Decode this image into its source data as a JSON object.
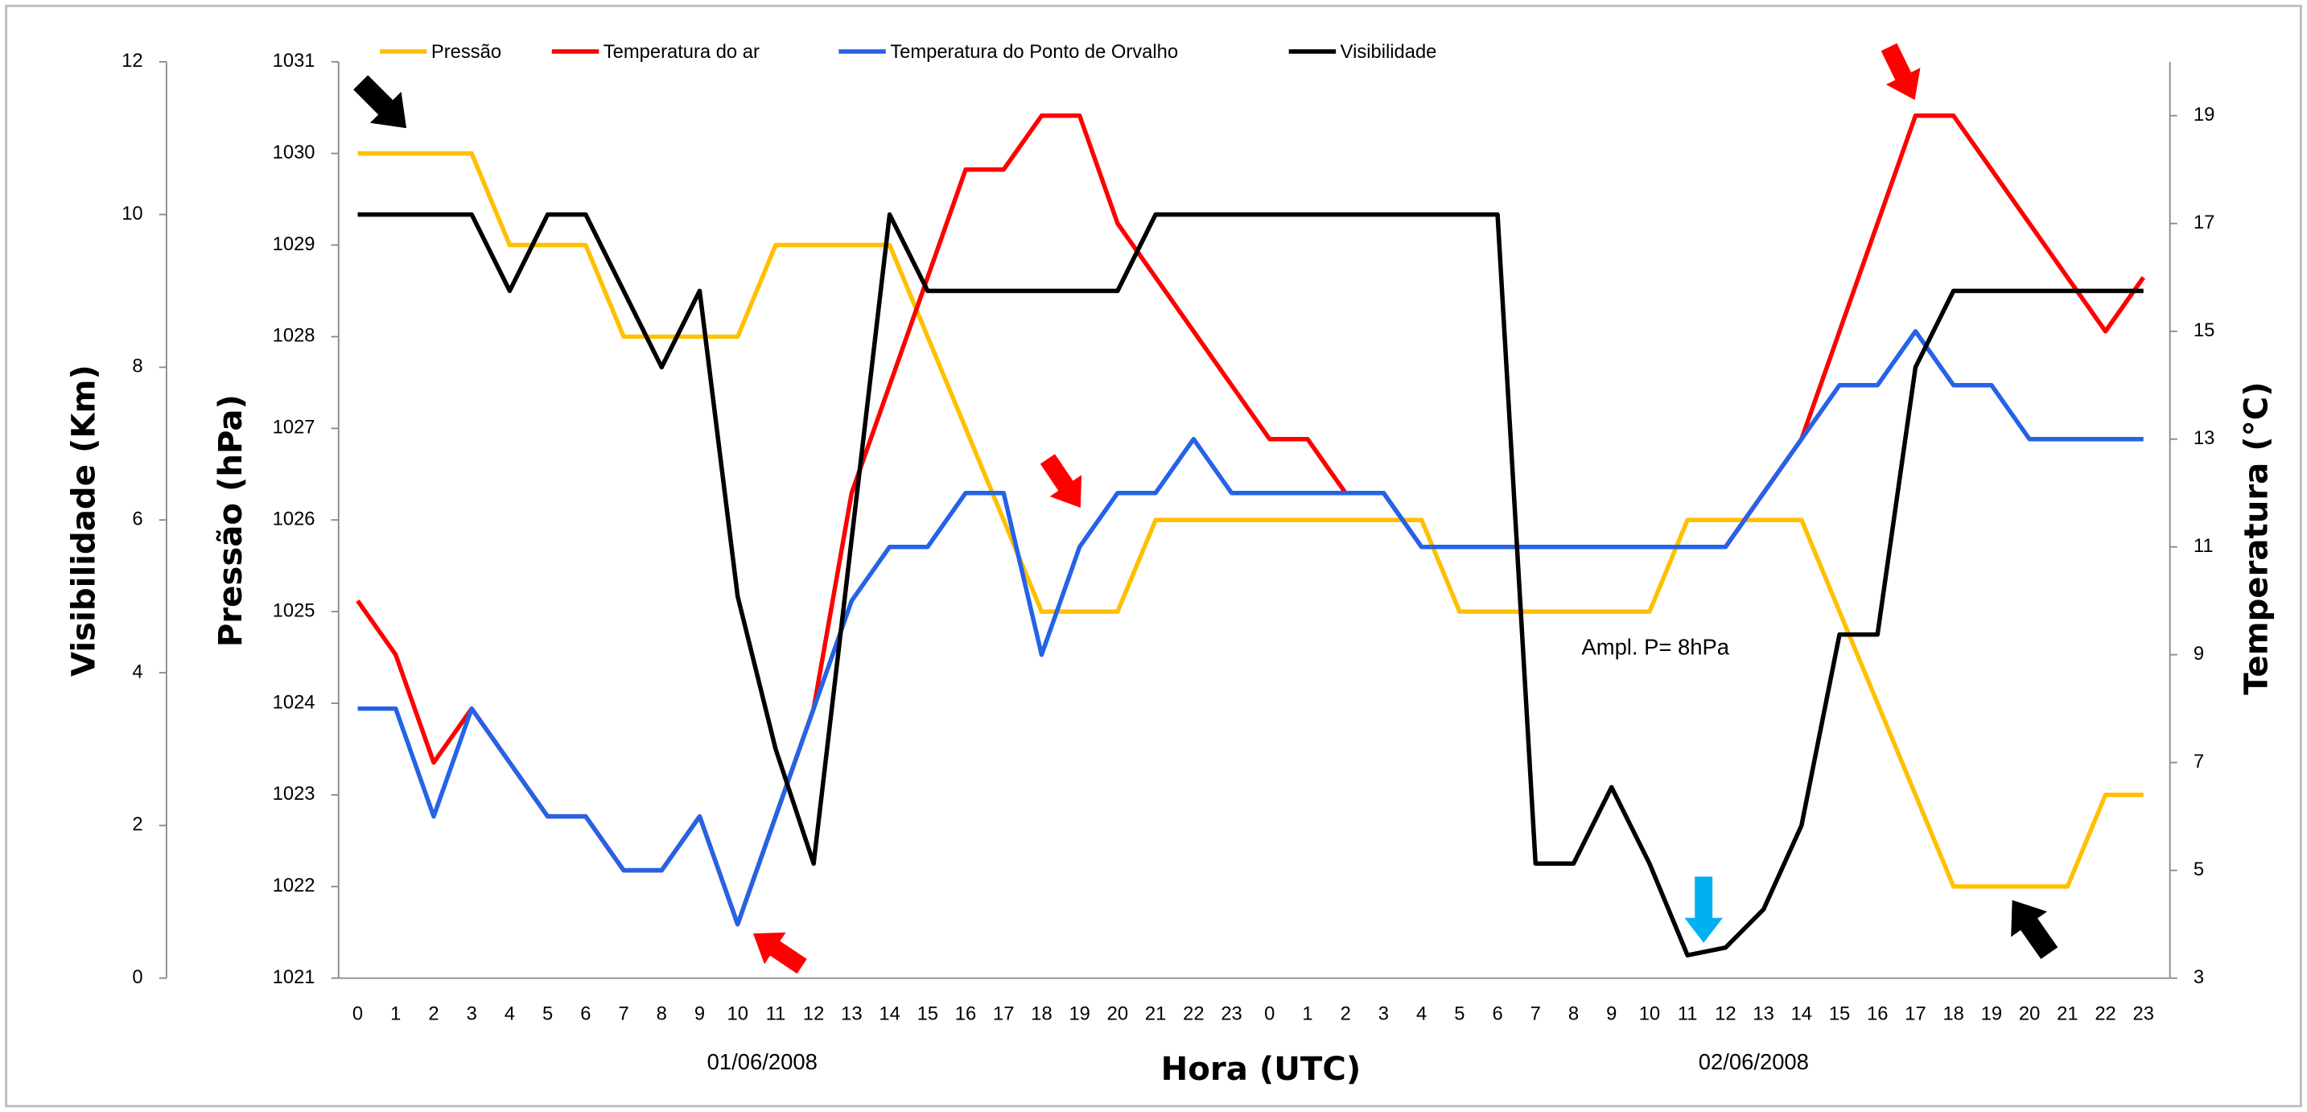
{
  "chart_data": {
    "type": "line",
    "categories": [
      "0",
      "1",
      "2",
      "3",
      "4",
      "5",
      "6",
      "7",
      "8",
      "9",
      "10",
      "11",
      "12",
      "13",
      "14",
      "15",
      "16",
      "17",
      "18",
      "19",
      "20",
      "21",
      "22",
      "23",
      "0",
      "1",
      "2",
      "3",
      "4",
      "5",
      "6",
      "7",
      "8",
      "9",
      "10",
      "11",
      "12",
      "13",
      "14",
      "15",
      "16",
      "17",
      "18",
      "19",
      "20",
      "21",
      "22",
      "23"
    ],
    "x_title": "Hora (UTC)",
    "y_title": "Pressão (hPa)",
    "y2_title": "Temperatura (°C)",
    "y3_title": "Visibilidade (Km)",
    "ylim": [
      1021,
      1031
    ],
    "yticks": [
      1021,
      1022,
      1023,
      1024,
      1025,
      1026,
      1027,
      1028,
      1029,
      1030,
      1031
    ],
    "y2lim": [
      3,
      20
    ],
    "y2ticks": [
      3,
      5,
      7,
      9,
      11,
      13,
      15,
      17,
      19
    ],
    "y3lim": [
      0,
      12
    ],
    "y3ticks": [
      0,
      2,
      4,
      6,
      8,
      10,
      12
    ],
    "annotations": [
      "01/06/2008",
      "02/06/2008",
      "Ampl. P= 8hPa"
    ],
    "series": [
      {
        "name": "Pressão",
        "color": "#FFC000",
        "axis": "y",
        "values": [
          1030,
          1030,
          1030,
          1030,
          1029,
          1029,
          1029,
          1028,
          1028,
          1028,
          1028,
          1029,
          1029,
          1029,
          1029,
          1028,
          1027,
          1026,
          1025,
          1025,
          1025,
          1026,
          1026,
          1026,
          1026,
          1026,
          1026,
          1026,
          1026,
          1025,
          1025,
          1025,
          1025,
          1025,
          1025,
          1026,
          1026,
          1026,
          1026,
          1025,
          1024,
          1023,
          1022,
          1022,
          1022,
          1022,
          1023,
          1023
        ]
      },
      {
        "name": "Temperatura do ar",
        "color": "#FF0000",
        "axis": "y2",
        "values": [
          10,
          9,
          7,
          8,
          7,
          6,
          6,
          5,
          5,
          6,
          4,
          6,
          8,
          12,
          14,
          16,
          18,
          18,
          19,
          19,
          17,
          16,
          15,
          14,
          13,
          13,
          12,
          12,
          11,
          11,
          11,
          11,
          11,
          11,
          11,
          11,
          11,
          12,
          13,
          15,
          17,
          19,
          19,
          18,
          17,
          16,
          15,
          16
        ]
      },
      {
        "name": "Temperatura do Ponto de Orvalho",
        "color": "#2563E6",
        "axis": "y2",
        "values": [
          8,
          8,
          6,
          8,
          7,
          6,
          6,
          5,
          5,
          6,
          4,
          6,
          8,
          10,
          11,
          11,
          12,
          12,
          9,
          11,
          12,
          12,
          13,
          12,
          12,
          12,
          12,
          12,
          11,
          11,
          11,
          11,
          11,
          11,
          11,
          11,
          11,
          12,
          13,
          14,
          14,
          15,
          14,
          14,
          13,
          13,
          13,
          13
        ]
      },
      {
        "name": "Visibilidade",
        "color": "#000000",
        "axis": "y3",
        "values": [
          10,
          10,
          10,
          10,
          9,
          10,
          10,
          9,
          8,
          9,
          5,
          3,
          1.5,
          5.75,
          10,
          9,
          9,
          9,
          9,
          9,
          9,
          10,
          10,
          10,
          10,
          10,
          10,
          10,
          10,
          10,
          10,
          1.5,
          1.5,
          2.5,
          1.5,
          0.3,
          0.4,
          0.9,
          2,
          4.5,
          4.5,
          8,
          9,
          9,
          9,
          9,
          9,
          9
        ]
      }
    ]
  }
}
